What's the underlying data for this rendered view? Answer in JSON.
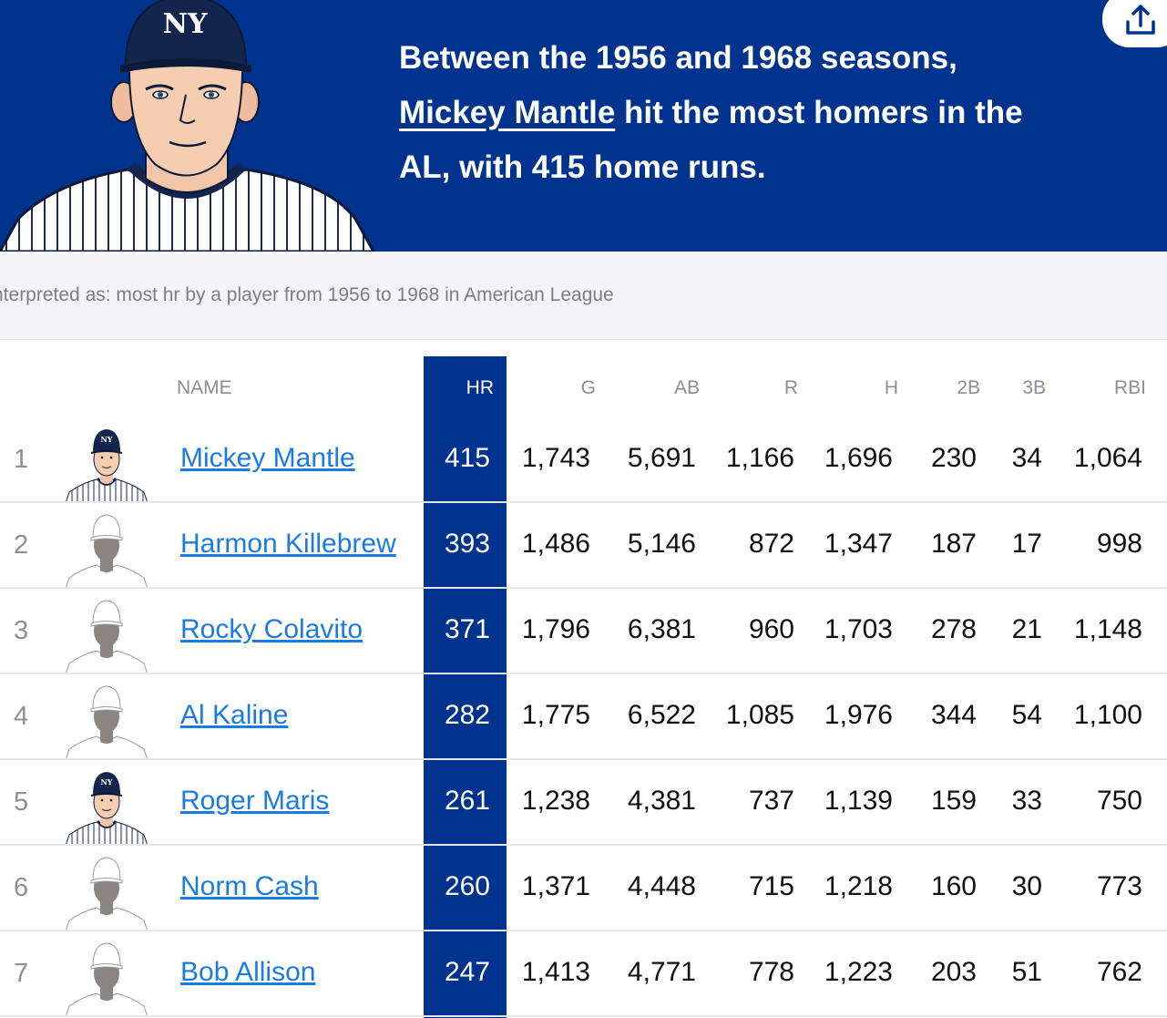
{
  "hero": {
    "line1": "Between the 1956 and 1968 seasons,",
    "player_link": "Mickey Mantle",
    "line2_rest": " hit the most homers in the",
    "line3": "AL, with 415 home runs.",
    "cap_logo": "NY"
  },
  "share_icon": "share-icon",
  "interpretation": "nterpreted as: most hr by a player from 1956 to 1968 in American League",
  "table": {
    "headers": {
      "name": "NAME",
      "hr": "HR",
      "g": "G",
      "ab": "AB",
      "r": "R",
      "h": "H",
      "2b": "2B",
      "3b": "3B",
      "rbi": "RBI"
    },
    "rows": [
      {
        "rank": "1",
        "name": "Mickey Mantle",
        "avatar": "yankees",
        "hr": "415",
        "g": "1,743",
        "ab": "5,691",
        "r": "1,166",
        "h": "1,696",
        "2b": "230",
        "3b": "34",
        "rbi": "1,064"
      },
      {
        "rank": "2",
        "name": "Harmon Killebrew",
        "avatar": "silhouette",
        "hr": "393",
        "g": "1,486",
        "ab": "5,146",
        "r": "872",
        "h": "1,347",
        "2b": "187",
        "3b": "17",
        "rbi": "998"
      },
      {
        "rank": "3",
        "name": "Rocky Colavito",
        "avatar": "silhouette",
        "hr": "371",
        "g": "1,796",
        "ab": "6,381",
        "r": "960",
        "h": "1,703",
        "2b": "278",
        "3b": "21",
        "rbi": "1,148"
      },
      {
        "rank": "4",
        "name": "Al Kaline",
        "avatar": "silhouette",
        "hr": "282",
        "g": "1,775",
        "ab": "6,522",
        "r": "1,085",
        "h": "1,976",
        "2b": "344",
        "3b": "54",
        "rbi": "1,100"
      },
      {
        "rank": "5",
        "name": "Roger Maris",
        "avatar": "yankees",
        "hr": "261",
        "g": "1,238",
        "ab": "4,381",
        "r": "737",
        "h": "1,139",
        "2b": "159",
        "3b": "33",
        "rbi": "750"
      },
      {
        "rank": "6",
        "name": "Norm Cash",
        "avatar": "silhouette",
        "hr": "260",
        "g": "1,371",
        "ab": "4,448",
        "r": "715",
        "h": "1,218",
        "2b": "160",
        "3b": "30",
        "rbi": "773"
      },
      {
        "rank": "7",
        "name": "Bob Allison",
        "avatar": "silhouette",
        "hr": "247",
        "g": "1,413",
        "ab": "4,771",
        "r": "778",
        "h": "1,223",
        "2b": "203",
        "3b": "51",
        "rbi": "762"
      }
    ]
  },
  "colors": {
    "brand_navy": "#00338d",
    "link_blue": "#1a7ce3",
    "muted_gray": "#8e8e95"
  }
}
